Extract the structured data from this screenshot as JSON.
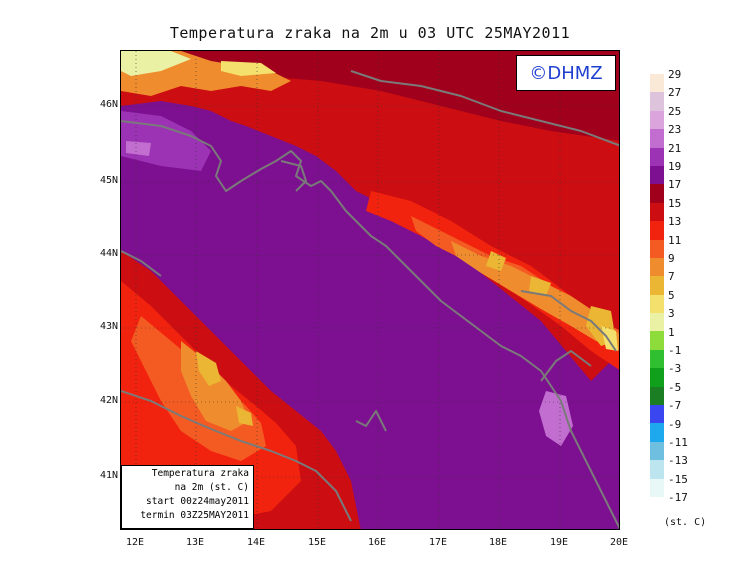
{
  "title": "Temperatura zraka na 2m u 03 UTC 25MAY2011",
  "brand": "©DHMZ",
  "infobox": {
    "line1": "Temperatura zraka",
    "line2": "na 2m (st. C)",
    "line3": "start 00z24may2011",
    "line4": "termin 03Z25MAY2011"
  },
  "axes": {
    "latitude_labels": [
      "46N",
      "45N",
      "44N",
      "43N",
      "42N",
      "41N"
    ],
    "longitude_labels": [
      "12E",
      "13E",
      "14E",
      "15E",
      "16E",
      "17E",
      "18E",
      "19E",
      "20E"
    ]
  },
  "legend": {
    "labels": [
      "29",
      "27",
      "25",
      "23",
      "21",
      "19",
      "17",
      "15",
      "13",
      "11",
      "9",
      "7",
      "5",
      "3",
      "1",
      "-1",
      "-3",
      "-5",
      "-7",
      "-9",
      "-11",
      "-13",
      "-15",
      "-17"
    ],
    "colors": [
      "#fbe9d8",
      "#dec3dc",
      "#dba4dc",
      "#c26ed0",
      "#9b33b4",
      "#7d1090",
      "#a1001c",
      "#cc0d12",
      "#f2230e",
      "#f45b22",
      "#ef8d2e",
      "#eab634",
      "#f4e06c",
      "#eaf0a4",
      "#8edc3c",
      "#2fbf30",
      "#11a01b",
      "#1b7e23",
      "#3a46f0",
      "#1ea8ee",
      "#6fbfe0",
      "#bde5ef",
      "#e8f8f6"
    ],
    "unit": "(st. C)"
  }
}
